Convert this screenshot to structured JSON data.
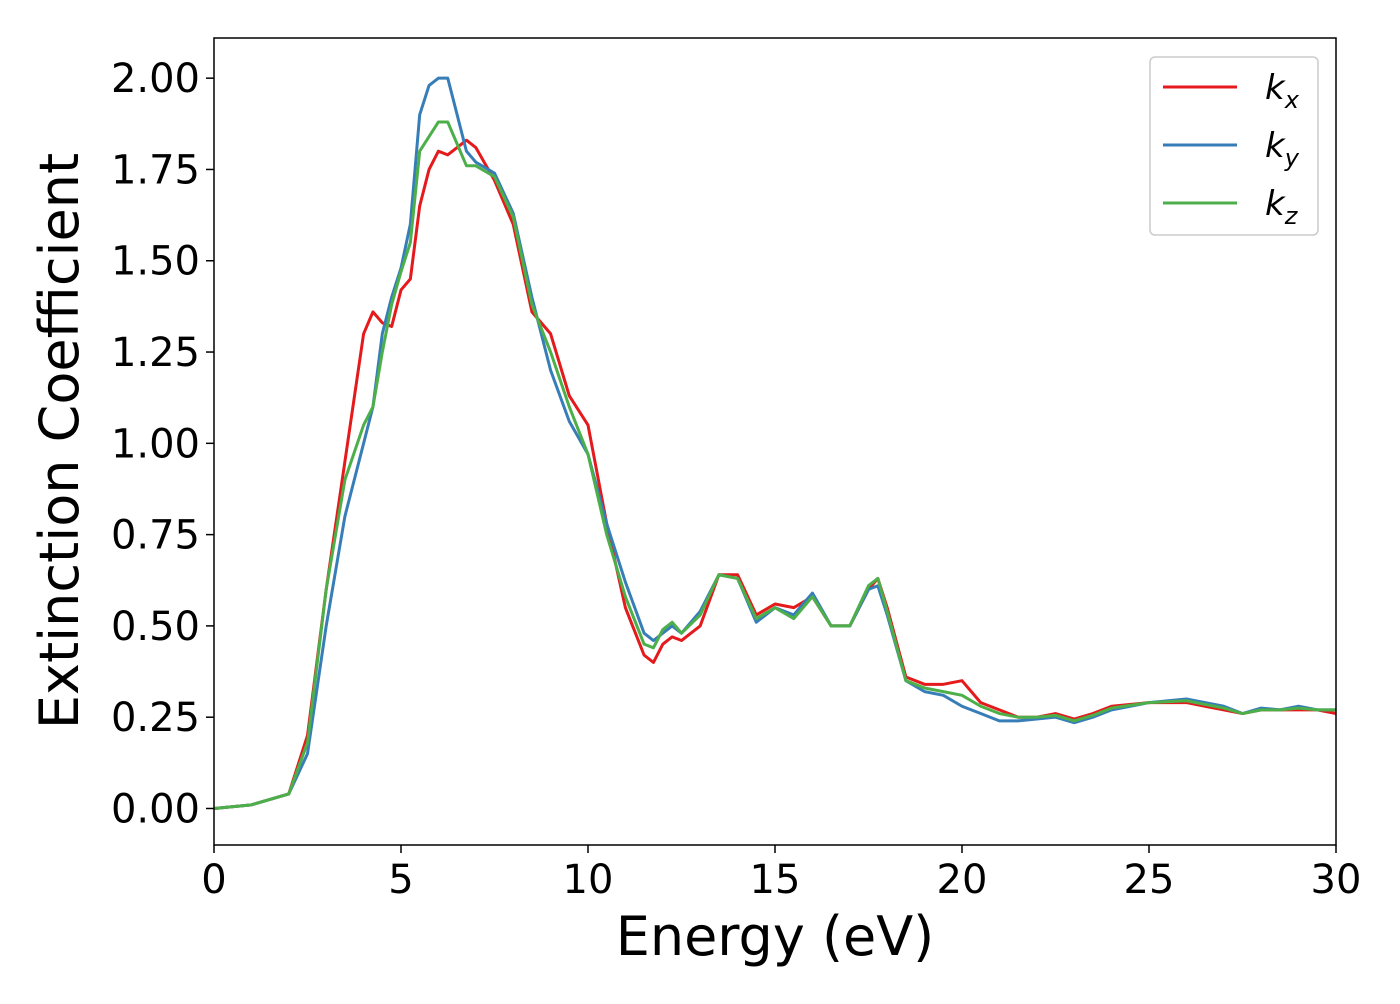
{
  "chart_data": {
    "type": "line",
    "xlabel": "Energy (eV)",
    "ylabel": "Extinction Coefficient",
    "xlim": [
      0,
      30
    ],
    "ylim": [
      -0.1,
      2.11
    ],
    "xticks": [
      0,
      5,
      10,
      15,
      20,
      25,
      30
    ],
    "yticks": [
      {
        "value": 0,
        "label": "0.00"
      },
      {
        "value": 0.25,
        "label": "0.25"
      },
      {
        "value": 0.5,
        "label": "0.50"
      },
      {
        "value": 0.75,
        "label": "0.75"
      },
      {
        "value": 1,
        "label": "1.00"
      },
      {
        "value": 1.25,
        "label": "1.25"
      },
      {
        "value": 1.5,
        "label": "1.50"
      },
      {
        "value": 1.75,
        "label": "1.75"
      },
      {
        "value": 2,
        "label": "2.00"
      }
    ],
    "grid": false,
    "legend": "upper right",
    "x": [
      0,
      1,
      2,
      2.5,
      3,
      3.5,
      4,
      4.25,
      4.5,
      4.75,
      5,
      5.25,
      5.5,
      5.75,
      6,
      6.25,
      6.5,
      6.75,
      7,
      7.5,
      8,
      8.5,
      9,
      9.5,
      10,
      10.5,
      11,
      11.5,
      11.75,
      12,
      12.25,
      12.5,
      13,
      13.5,
      14,
      14.5,
      15,
      15.5,
      16,
      16.5,
      17,
      17.5,
      17.75,
      18,
      18.5,
      19,
      19.5,
      20,
      20.5,
      21,
      21.5,
      22,
      22.5,
      23,
      23.5,
      24,
      25,
      26,
      26.5,
      27,
      27.5,
      28,
      28.5,
      29,
      29.5,
      30
    ],
    "series": [
      {
        "name": "kx",
        "color": "#e41a1c",
        "values": [
          0,
          0.01,
          0.04,
          0.2,
          0.6,
          0.95,
          1.3,
          1.36,
          1.33,
          1.32,
          1.42,
          1.45,
          1.65,
          1.75,
          1.8,
          1.79,
          1.81,
          1.83,
          1.81,
          1.72,
          1.6,
          1.36,
          1.3,
          1.13,
          1.05,
          0.78,
          0.55,
          0.42,
          0.4,
          0.45,
          0.47,
          0.46,
          0.5,
          0.64,
          0.64,
          0.53,
          0.56,
          0.55,
          0.58,
          0.5,
          0.5,
          0.6,
          0.63,
          0.55,
          0.36,
          0.34,
          0.34,
          0.35,
          0.29,
          0.27,
          0.25,
          0.25,
          0.26,
          0.245,
          0.26,
          0.28,
          0.29,
          0.29,
          0.28,
          0.27,
          0.26,
          0.27,
          0.27,
          0.27,
          0.27,
          0.26
        ]
      },
      {
        "name": "ky",
        "color": "#377eb8",
        "values": [
          0,
          0.01,
          0.04,
          0.15,
          0.5,
          0.8,
          1.0,
          1.1,
          1.3,
          1.4,
          1.48,
          1.6,
          1.9,
          1.98,
          2.0,
          2.0,
          1.9,
          1.8,
          1.77,
          1.74,
          1.63,
          1.4,
          1.2,
          1.06,
          0.97,
          0.78,
          0.62,
          0.48,
          0.46,
          0.48,
          0.5,
          0.48,
          0.54,
          0.64,
          0.63,
          0.51,
          0.55,
          0.53,
          0.59,
          0.5,
          0.5,
          0.6,
          0.61,
          0.53,
          0.35,
          0.32,
          0.31,
          0.28,
          0.26,
          0.24,
          0.24,
          0.245,
          0.25,
          0.235,
          0.25,
          0.27,
          0.29,
          0.3,
          0.29,
          0.28,
          0.26,
          0.275,
          0.27,
          0.28,
          0.27,
          0.27
        ]
      },
      {
        "name": "kz",
        "color": "#4daf4a",
        "values": [
          0,
          0.01,
          0.04,
          0.18,
          0.6,
          0.9,
          1.05,
          1.1,
          1.25,
          1.38,
          1.47,
          1.55,
          1.8,
          1.84,
          1.88,
          1.88,
          1.82,
          1.76,
          1.76,
          1.73,
          1.62,
          1.38,
          1.25,
          1.1,
          0.97,
          0.75,
          0.58,
          0.45,
          0.44,
          0.49,
          0.51,
          0.48,
          0.53,
          0.64,
          0.63,
          0.52,
          0.55,
          0.52,
          0.58,
          0.5,
          0.5,
          0.61,
          0.63,
          0.54,
          0.35,
          0.33,
          0.32,
          0.31,
          0.28,
          0.26,
          0.25,
          0.25,
          0.255,
          0.24,
          0.255,
          0.275,
          0.29,
          0.295,
          0.285,
          0.275,
          0.26,
          0.27,
          0.27,
          0.275,
          0.27,
          0.27
        ]
      }
    ]
  }
}
